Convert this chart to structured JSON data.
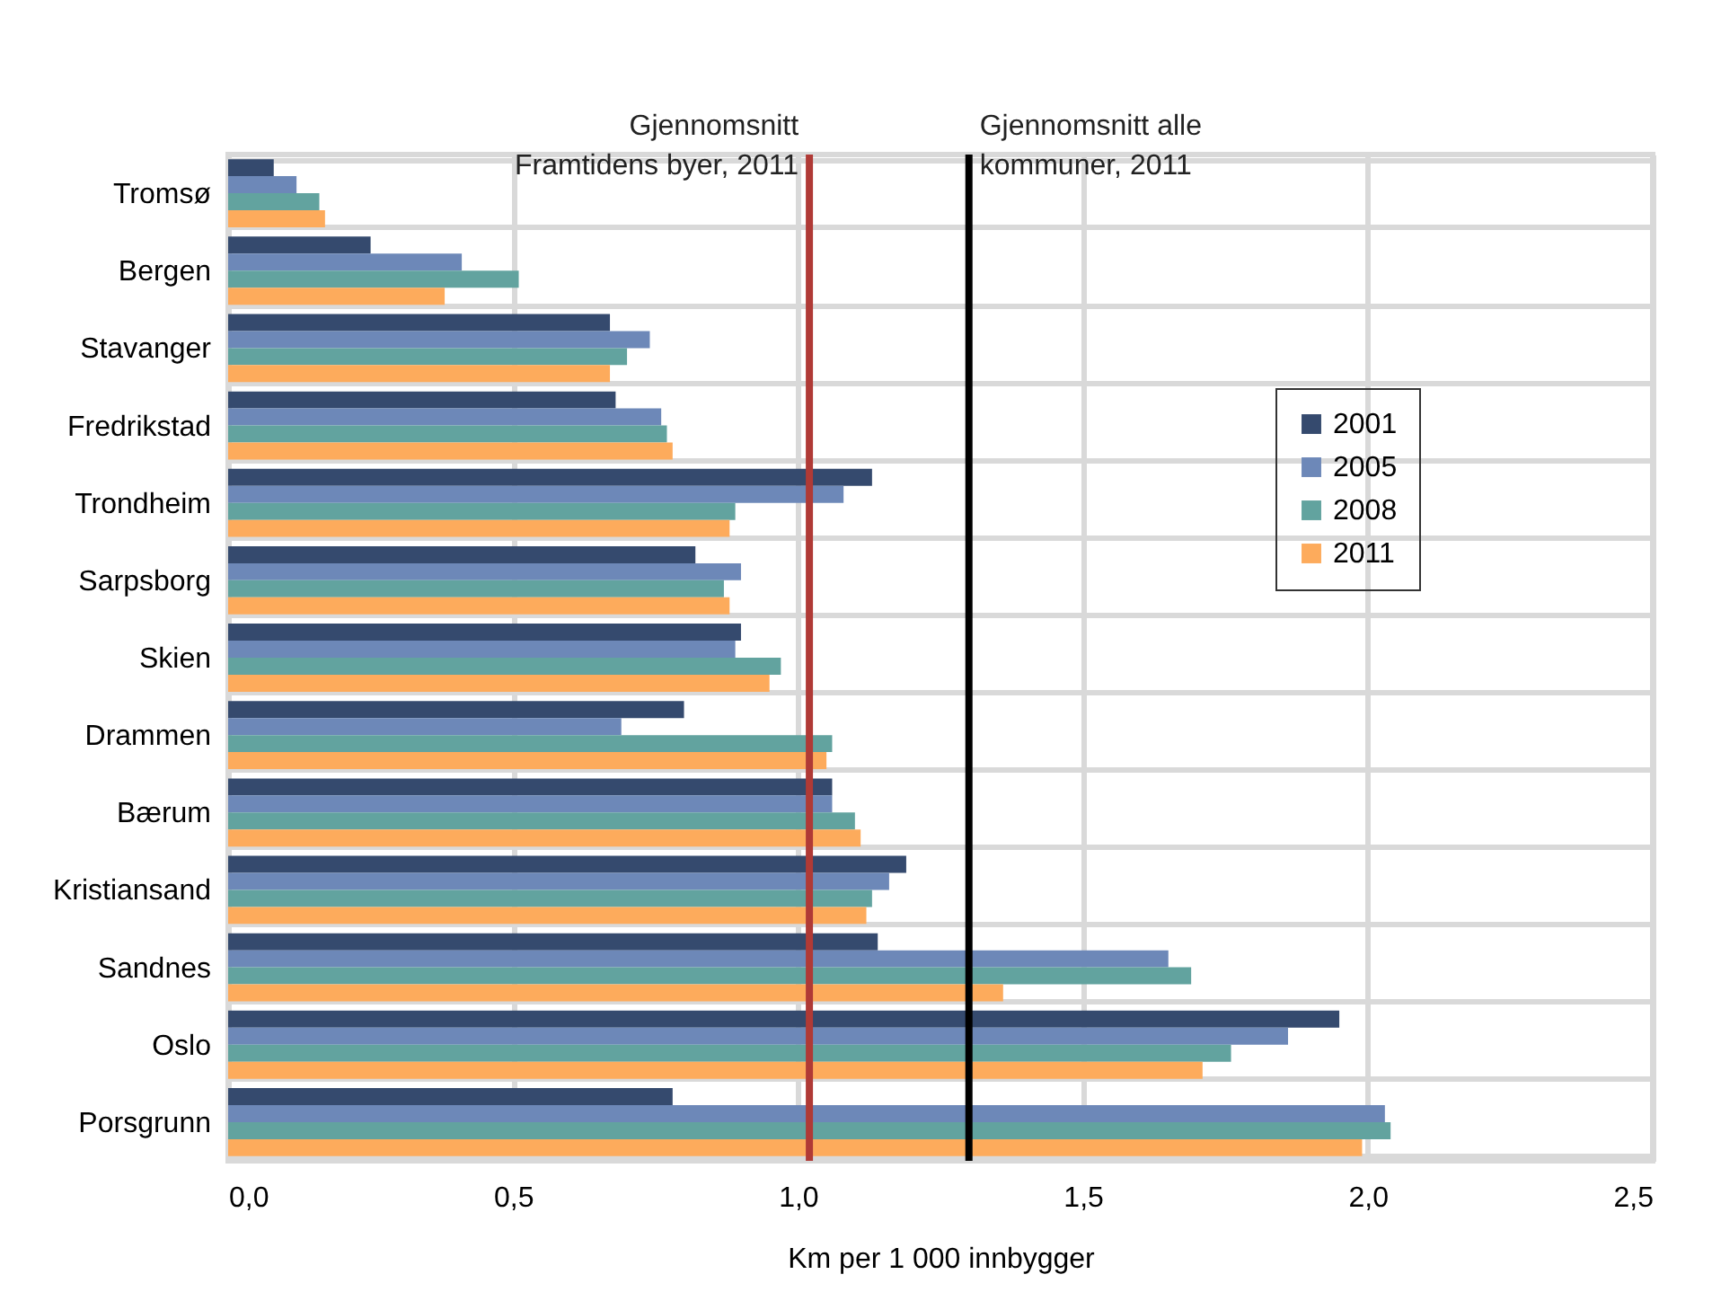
{
  "chart_data": {
    "type": "bar",
    "orientation": "horizontal",
    "xlabel": "Km per 1 000 innbygger",
    "categories": [
      "Tromsø",
      "Bergen",
      "Stavanger",
      "Fredrikstad",
      "Trondheim",
      "Sarpsborg",
      "Skien",
      "Drammen",
      "Bærum",
      "Kristiansand",
      "Sandnes",
      "Oslo",
      "Porsgrunn"
    ],
    "series": [
      {
        "name": "2001",
        "color": "#354a6e",
        "values": [
          0.08,
          0.25,
          0.67,
          0.68,
          1.13,
          0.82,
          0.9,
          0.8,
          1.06,
          1.19,
          1.14,
          1.95,
          0.78
        ]
      },
      {
        "name": "2005",
        "color": "#6d88b8",
        "values": [
          0.12,
          0.41,
          0.74,
          0.76,
          1.08,
          0.9,
          0.89,
          0.69,
          1.06,
          1.16,
          1.65,
          1.86,
          2.03
        ]
      },
      {
        "name": "2008",
        "color": "#62a39f",
        "values": [
          0.16,
          0.51,
          0.7,
          0.77,
          0.89,
          0.87,
          0.97,
          1.06,
          1.1,
          1.13,
          1.69,
          1.76,
          2.04
        ]
      },
      {
        "name": "2011",
        "color": "#fdab5c",
        "values": [
          0.17,
          0.38,
          0.67,
          0.78,
          0.88,
          0.88,
          0.95,
          1.05,
          1.11,
          1.12,
          1.36,
          1.71,
          1.99
        ]
      }
    ],
    "xlim": [
      0,
      2.5
    ],
    "xticks": [
      {
        "value": 0,
        "label": "0,0"
      },
      {
        "value": 0.5,
        "label": "0,5"
      },
      {
        "value": 1,
        "label": "1,0"
      },
      {
        "value": 1.5,
        "label": "1,5"
      },
      {
        "value": 2,
        "label": "2,0"
      },
      {
        "value": 2.5,
        "label": "2,5"
      }
    ],
    "ref_lines": [
      {
        "axis": "x",
        "value": 1.02,
        "label": "Gjennomsnitt\nFramtidens byer, 2011",
        "color": "#b03a36"
      },
      {
        "axis": "x",
        "value": 1.3,
        "label": "Gjennomsnitt alle\nkommuner, 2011",
        "color": "#000000"
      }
    ],
    "grid": true,
    "legend": "top right"
  }
}
